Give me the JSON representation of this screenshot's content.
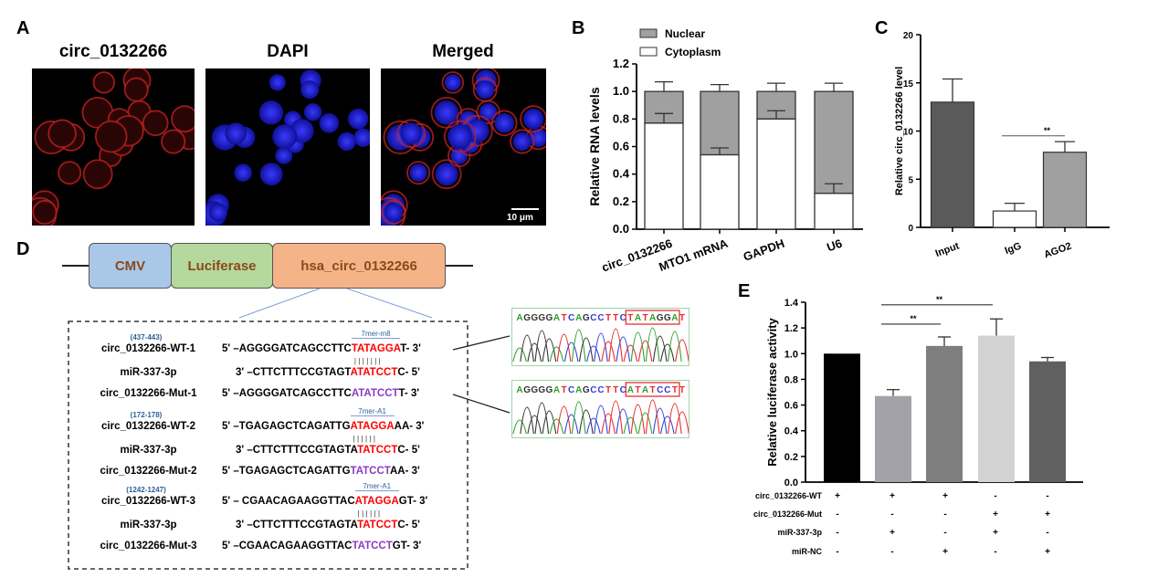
{
  "panels": {
    "a": "A",
    "b": "B",
    "c": "C",
    "d": "D",
    "e": "E"
  },
  "panelA": {
    "titles": [
      "circ_0132266",
      "DAPI",
      "Merged"
    ],
    "scale_bar": "10 μm"
  },
  "panelD": {
    "construct": {
      "cmv": "CMV",
      "luciferase": "Luciferase",
      "circ": "hsa_circ_0132266"
    },
    "colors": {
      "cmv": "#a9c8e8",
      "luciferase": "#b5d89c",
      "circ": "#f5b488",
      "wt_highlight": "#ff0000",
      "mut_highlight": "#8a3bc4"
    },
    "groups": [
      {
        "site": "(437-443)",
        "seed": "7mer-m8",
        "pairs": "|||||||",
        "wt": {
          "name": "circ_0132266-WT-1",
          "pre": "5' –AGGGGATCAGCCTTC",
          "hl": "TATAGGA",
          "post": "T- 3'"
        },
        "mir": {
          "name": "miR-337-3p",
          "pre": "3'  –CTTCTTTCCGTAGT",
          "hl": "ATATCCT",
          "post": "C-  5'"
        },
        "mut": {
          "name": "circ_0132266-Mut-1",
          "pre": "5' –AGGGGATCAGCCTTC",
          "hl": "ATATCCT",
          "post": "T- 3'"
        }
      },
      {
        "site": "(172-178)",
        "seed": "7mer-A1",
        "pairs": "||||||",
        "wt": {
          "name": "circ_0132266-WT-2",
          "pre": "5'  –TGAGAGCTCAGATTG",
          "hl": "ATAGGA",
          "post": "AA- 3'"
        },
        "mir": {
          "name": "miR-337-3p",
          "pre": "3'  –CTTCTTTCCGTAGTA",
          "hl": "TATCCT",
          "post": "C-  5'"
        },
        "mut": {
          "name": "circ_0132266-Mut-2",
          "pre": "5'   –TGAGAGCTCAGATTG",
          "hl": "TATCCT",
          "post": "AA- 3'"
        }
      },
      {
        "site": "(1242-1247)",
        "seed": "7mer-A1",
        "pairs": "||||||",
        "wt": {
          "name": "circ_0132266-WT-3",
          "pre": "5'   – CGAACAGAAGGTTAC",
          "hl": "ATAGGA",
          "post": "GT- 3'"
        },
        "mir": {
          "name": "miR-337-3p",
          "pre": "3'  –CTTCTTTCCGTAGTA",
          "hl": "TATCCT",
          "post": "C-  5'"
        },
        "mut": {
          "name": "circ_0132266-Mut-3",
          "pre": "5'   –CGAACAGAAGGTTAC",
          "hl": "TATCCT",
          "post": "GT- 3'"
        }
      }
    ],
    "chromatograms": [
      {
        "sequence": "AGGGGATCAGCCTTCTATAGGAT",
        "box_start": 15,
        "box_end": 22
      },
      {
        "sequence": "AGGGGATCAGCCTTCATATCCTT",
        "box_start": 15,
        "box_end": 22
      }
    ],
    "base_colors": {
      "A": "#2ca02c",
      "G": "#333333",
      "C": "#2f3fd8",
      "T": "#e8282d"
    }
  },
  "chart_data": [
    {
      "id": "B",
      "type": "bar",
      "stacked": true,
      "categories": [
        "circ_0132266",
        "MTO1 mRNA",
        "GAPDH",
        "U6"
      ],
      "series": [
        {
          "name": "Nuclear",
          "values": [
            0.23,
            0.46,
            0.2,
            0.74
          ],
          "color": "#a0a0a0",
          "error_top": [
            1.07,
            1.05,
            1.06,
            1.06
          ]
        },
        {
          "name": "Cytoplasm",
          "values": [
            0.77,
            0.54,
            0.8,
            0.26
          ],
          "color": "#ffffff",
          "error_top": [
            0.84,
            0.59,
            0.86,
            0.33
          ]
        }
      ],
      "ylabel": "Relative RNA levels",
      "ylim": [
        0,
        1.2
      ],
      "yticks": [
        "0.0",
        "0.2",
        "0.4",
        "0.6",
        "0.8",
        "1.0",
        "1.2"
      ],
      "legend": "top-left"
    },
    {
      "id": "C",
      "type": "bar",
      "categories": [
        "Input",
        "IgG",
        "AGO2"
      ],
      "values": [
        13.0,
        1.7,
        7.8
      ],
      "error_top": [
        15.4,
        2.5,
        8.9
      ],
      "colors": [
        "#5a5a5a",
        "#ffffff",
        "#a0a0a0"
      ],
      "ylabel": "Relative circ_0132266 level",
      "ylim": [
        0,
        20
      ],
      "yticks": [
        "0",
        "5",
        "10",
        "15",
        "20"
      ],
      "annotations": [
        {
          "from": "IgG",
          "to": "AGO2",
          "level": 9.5,
          "text": "**"
        }
      ]
    },
    {
      "id": "E",
      "type": "bar",
      "values": [
        1.0,
        0.67,
        1.06,
        1.14,
        0.94
      ],
      "error_top": [
        1.0,
        0.72,
        1.13,
        1.27,
        0.97
      ],
      "colors": [
        "#000000",
        "#a2a2a8",
        "#7e7e7e",
        "#d2d2d2",
        "#606060"
      ],
      "ylabel": "Relative luciferase activity",
      "ylim": [
        0,
        1.4
      ],
      "yticks": [
        "0.0",
        "0.2",
        "0.4",
        "0.6",
        "0.8",
        "1.0",
        "1.2",
        "1.4"
      ],
      "annotations": [
        {
          "from": 1,
          "to": 2,
          "level": 1.23,
          "text": "**"
        },
        {
          "from": 1,
          "to": 3,
          "level": 1.38,
          "text": "**"
        }
      ],
      "conditions": [
        {
          "label": "circ_0132266-WT",
          "marks": [
            "+",
            "+",
            "+",
            "-",
            "-"
          ]
        },
        {
          "label": "circ_0132266-Mut",
          "marks": [
            "-",
            "-",
            "-",
            "+",
            "+"
          ]
        },
        {
          "label": "miR-337-3p",
          "marks": [
            "-",
            "+",
            "-",
            "+",
            "-"
          ]
        },
        {
          "label": "miR-NC",
          "marks": [
            "-",
            "-",
            "+",
            "-",
            "+"
          ]
        }
      ]
    }
  ]
}
